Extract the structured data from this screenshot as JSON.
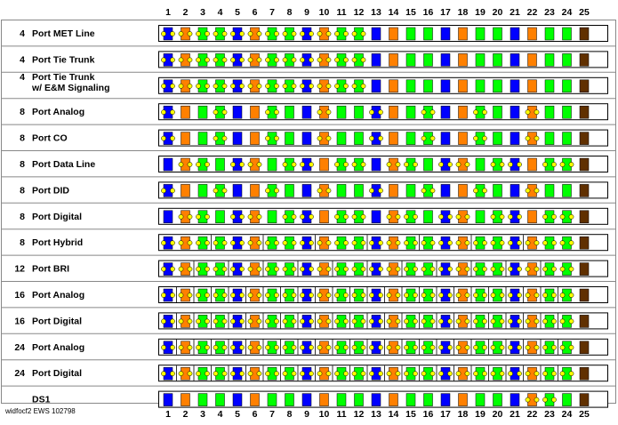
{
  "footer": "widfocf2 EWS 102798",
  "colors": {
    "blue": "#0000ff",
    "orange": "#ff8000",
    "green": "#00ff00",
    "brown": "#603000",
    "yellow": "#ffff00",
    "border": "#000000",
    "frame": "#888888"
  },
  "pins": [
    "1",
    "2",
    "3",
    "4",
    "5",
    "6",
    "7",
    "8",
    "9",
    "10",
    "11",
    "12",
    "13",
    "14",
    "15",
    "16",
    "17",
    "18",
    "19",
    "20",
    "21",
    "22",
    "23",
    "24",
    "25"
  ],
  "rows": [
    {
      "count": "4",
      "name": "Port MET Line",
      "name2": "",
      "dots": [
        1,
        2,
        3,
        4,
        5,
        6,
        7,
        8,
        9,
        10,
        11,
        12
      ],
      "seps": []
    },
    {
      "count": "4",
      "name": "Port Tie Trunk",
      "name2": "",
      "dots": [
        1,
        2,
        3,
        4,
        5,
        6,
        7,
        8,
        9,
        10,
        11,
        12
      ],
      "seps": []
    },
    {
      "count": "4",
      "name": "Port Tie Trunk",
      "name2": "w/ E&M Signaling",
      "dots": [
        1,
        2,
        3,
        4,
        5,
        6,
        7,
        8,
        9,
        10,
        11,
        12
      ],
      "seps": []
    },
    {
      "count": "8",
      "name": "Port Analog",
      "name2": "",
      "dots": [
        1,
        4,
        7,
        10,
        13,
        16,
        19,
        22
      ],
      "seps": []
    },
    {
      "count": "8",
      "name": "Port CO",
      "name2": "",
      "dots": [
        1,
        4,
        7,
        10,
        13,
        16,
        19,
        22
      ],
      "seps": []
    },
    {
      "count": "8",
      "name": "Port Data Line",
      "name2": "",
      "dots": [
        2,
        3,
        5,
        6,
        8,
        9,
        11,
        12,
        14,
        15,
        17,
        18,
        20,
        21,
        23,
        24
      ],
      "seps": []
    },
    {
      "count": "8",
      "name": "Port DID",
      "name2": "",
      "dots": [
        1,
        4,
        7,
        10,
        13,
        16,
        19,
        22
      ],
      "seps": []
    },
    {
      "count": "8",
      "name": "Port Digital",
      "name2": "",
      "dots": [
        2,
        3,
        5,
        6,
        8,
        9,
        11,
        12,
        14,
        15,
        17,
        18,
        20,
        21,
        23,
        24
      ],
      "seps": []
    },
    {
      "count": "8",
      "name": "Port Hybrid",
      "name2": "",
      "dots": [
        1,
        2,
        3,
        4,
        5,
        6,
        7,
        8,
        9,
        10,
        11,
        12,
        13,
        14,
        15,
        16,
        17,
        18,
        19,
        20,
        21,
        22,
        23,
        24
      ],
      "seps": [
        3,
        6,
        9,
        12,
        15,
        18,
        21
      ]
    },
    {
      "count": "12",
      "name": "Port BRI",
      "name2": "",
      "dots": [
        1,
        2,
        3,
        4,
        5,
        6,
        7,
        8,
        9,
        10,
        11,
        12,
        13,
        14,
        15,
        16,
        17,
        18,
        19,
        20,
        21,
        22,
        23,
        24
      ],
      "seps": [
        2,
        4,
        6,
        8,
        10,
        12,
        14,
        16,
        18,
        20,
        22
      ]
    },
    {
      "count": "16",
      "name": "Port Analog",
      "name2": "",
      "dots": [
        1,
        2,
        3,
        4,
        5,
        6,
        7,
        8,
        9,
        10,
        11,
        12,
        13,
        14,
        15,
        16,
        17,
        18,
        19,
        20,
        21,
        22,
        23,
        24
      ],
      "seps": [
        1,
        2,
        3,
        4,
        5,
        6,
        7,
        8,
        9,
        10,
        11,
        12,
        13,
        14,
        15,
        16,
        17,
        18,
        19,
        20,
        21,
        22,
        23
      ]
    },
    {
      "count": "16",
      "name": "Port Digital",
      "name2": "",
      "dots": [
        1,
        2,
        3,
        4,
        5,
        6,
        7,
        8,
        9,
        10,
        11,
        12,
        13,
        14,
        15,
        16,
        17,
        18,
        19,
        20,
        21,
        22,
        23,
        24
      ],
      "seps": [
        1,
        2,
        3,
        4,
        5,
        6,
        7,
        8,
        9,
        10,
        11,
        12,
        13,
        14,
        15,
        16,
        17,
        18,
        19,
        20,
        21,
        22,
        23
      ]
    },
    {
      "count": "24",
      "name": "Port Analog",
      "name2": "",
      "dots": [
        1,
        2,
        3,
        4,
        5,
        6,
        7,
        8,
        9,
        10,
        11,
        12,
        13,
        14,
        15,
        16,
        17,
        18,
        19,
        20,
        21,
        22,
        23,
        24
      ],
      "seps": [
        1,
        2,
        3,
        4,
        5,
        6,
        7,
        8,
        9,
        10,
        11,
        12,
        13,
        14,
        15,
        16,
        17,
        18,
        19,
        20,
        21,
        22,
        23
      ]
    },
    {
      "count": "24",
      "name": "Port Digital",
      "name2": "",
      "dots": [
        1,
        2,
        3,
        4,
        5,
        6,
        7,
        8,
        9,
        10,
        11,
        12,
        13,
        14,
        15,
        16,
        17,
        18,
        19,
        20,
        21,
        22,
        23,
        24
      ],
      "seps": [
        1,
        2,
        3,
        4,
        5,
        6,
        7,
        8,
        9,
        10,
        11,
        12,
        13,
        14,
        15,
        16,
        17,
        18,
        19,
        20,
        21,
        22,
        23
      ]
    },
    {
      "count": "",
      "name": "DS1",
      "name2": "",
      "dots": [
        22,
        23
      ],
      "seps": []
    }
  ]
}
